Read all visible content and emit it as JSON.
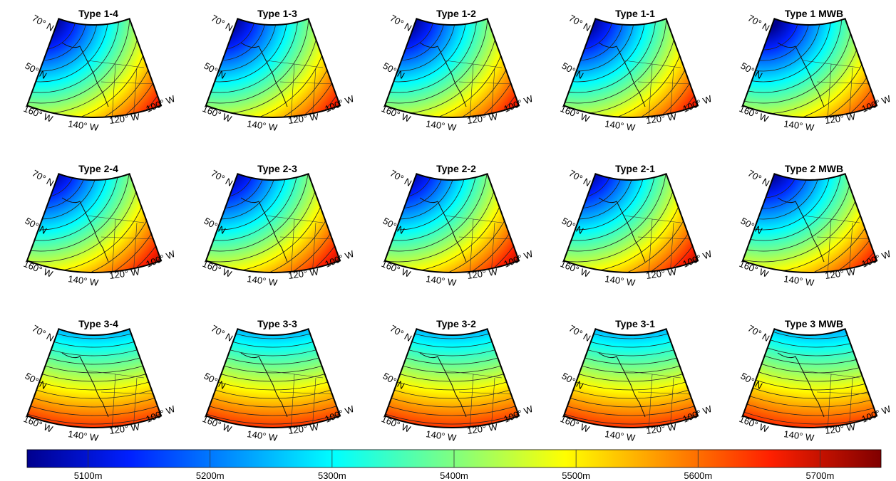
{
  "panels": [
    {
      "title": "Type 1-4"
    },
    {
      "title": "Type 1-3"
    },
    {
      "title": "Type 1-2"
    },
    {
      "title": "Type 1-1"
    },
    {
      "title": "Type 1 MWB"
    },
    {
      "title": "Type 2-4"
    },
    {
      "title": "Type 2-3"
    },
    {
      "title": "Type 2-2"
    },
    {
      "title": "Type 2-1"
    },
    {
      "title": "Type 2 MWB"
    },
    {
      "title": "Type 3-4"
    },
    {
      "title": "Type 3-3"
    },
    {
      "title": "Type 3-2"
    },
    {
      "title": "Type 3-1"
    },
    {
      "title": "Type 3 MWB"
    }
  ],
  "latitude_labels": [
    "70° N",
    "50° N"
  ],
  "longitude_labels": [
    "160° W",
    "140° W",
    "120° W",
    "100° W"
  ],
  "colorbar": {
    "range": [
      5050,
      5750
    ],
    "ticks": [
      {
        "value": 5100,
        "label": "5100m"
      },
      {
        "value": 5200,
        "label": "5200m"
      },
      {
        "value": 5300,
        "label": "5300m"
      },
      {
        "value": 5400,
        "label": "5400m"
      },
      {
        "value": 5500,
        "label": "5500m"
      },
      {
        "value": 5600,
        "label": "5600m"
      },
      {
        "value": 5700,
        "label": "5700m"
      }
    ]
  }
}
